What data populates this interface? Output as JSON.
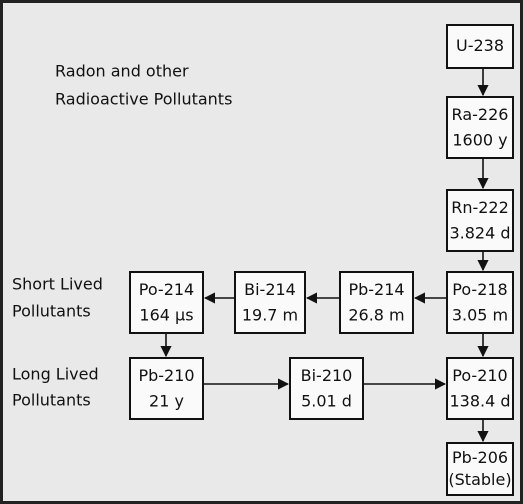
{
  "title": [
    "Radon and other",
    "Radioactive Pollutants"
  ],
  "groups": {
    "short": [
      "Short Lived",
      "Pollutants"
    ],
    "long": [
      "Long Lived",
      "Pollutants"
    ]
  },
  "nodes": [
    {
      "name": "U-238"
    },
    {
      "name": "Ra-226",
      "half_life": "1600 y"
    },
    {
      "name": "Rn-222",
      "half_life": "3.824 d"
    },
    {
      "name": "Po-218",
      "half_life": "3.05 m"
    },
    {
      "name": "Pb-214",
      "half_life": "26.8 m"
    },
    {
      "name": "Bi-214",
      "half_life": "19.7 m"
    },
    {
      "name": "Po-214",
      "half_life": "164 µs"
    },
    {
      "name": "Pb-210",
      "half_life": "21 y"
    },
    {
      "name": "Bi-210",
      "half_life": "5.01 d"
    },
    {
      "name": "Po-210",
      "half_life": "138.4 d"
    },
    {
      "name": "Pb-206",
      "half_life": "(Stable)"
    }
  ]
}
